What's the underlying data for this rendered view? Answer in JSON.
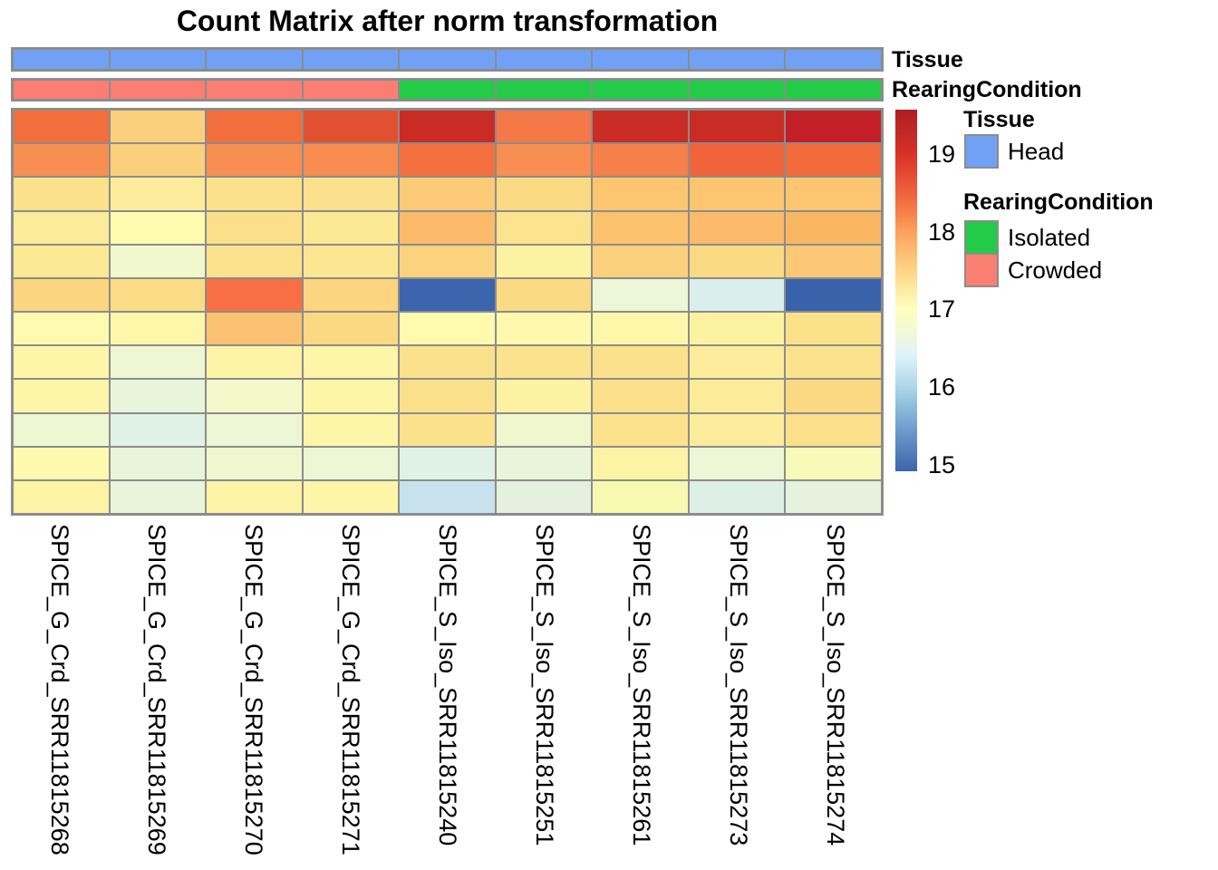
{
  "title": "Count Matrix after norm transformation",
  "annotations": {
    "tissue": {
      "label": "Tissue",
      "per_column": [
        "Head",
        "Head",
        "Head",
        "Head",
        "Head",
        "Head",
        "Head",
        "Head",
        "Head"
      ],
      "colors": {
        "Head": "#70A1F5"
      }
    },
    "rearing": {
      "label": "RearingCondition",
      "per_column": [
        "Crowded",
        "Crowded",
        "Crowded",
        "Crowded",
        "Isolated",
        "Isolated",
        "Isolated",
        "Isolated",
        "Isolated"
      ],
      "colors": {
        "Isolated": "#22CC47",
        "Crowded": "#FA7F72"
      }
    }
  },
  "legend": {
    "tissue_header": "Tissue",
    "tissue_items": [
      {
        "label": "Head",
        "color": "#70A1F5"
      }
    ],
    "rearing_header": "RearingCondition",
    "rearing_items": [
      {
        "label": "Isolated",
        "color": "#22CC47"
      },
      {
        "label": "Crowded",
        "color": "#FA7F72"
      }
    ]
  },
  "chart_data": {
    "type": "heatmap",
    "title": "Count Matrix after norm transformation",
    "columns": [
      "SPICE_G_Crd_SRR11815268",
      "SPICE_G_Crd_SRR11815269",
      "SPICE_G_Crd_SRR11815270",
      "SPICE_G_Crd_SRR11815271",
      "SPICE_S_Iso_SRR11815240",
      "SPICE_S_Iso_SRR11815251",
      "SPICE_S_Iso_SRR11815261",
      "SPICE_S_Iso_SRR11815273",
      "SPICE_S_Iso_SRR11815274"
    ],
    "n_rows": 12,
    "row_labels_shown": false,
    "column_annotations": {
      "Tissue": [
        "Head",
        "Head",
        "Head",
        "Head",
        "Head",
        "Head",
        "Head",
        "Head",
        "Head"
      ],
      "RearingCondition": [
        "Crowded",
        "Crowded",
        "Crowded",
        "Crowded",
        "Isolated",
        "Isolated",
        "Isolated",
        "Isolated",
        "Isolated"
      ]
    },
    "values": [
      [
        19.0,
        18.25,
        19.0,
        19.2,
        19.4,
        18.9,
        19.4,
        19.4,
        19.5
      ],
      [
        18.8,
        18.25,
        18.8,
        18.8,
        19.0,
        18.8,
        18.85,
        19.1,
        19.0
      ],
      [
        18.0,
        17.85,
        18.0,
        18.0,
        18.3,
        18.15,
        18.35,
        18.35,
        18.35
      ],
      [
        17.9,
        17.6,
        18.05,
        17.9,
        18.45,
        18.0,
        18.35,
        18.45,
        18.5
      ],
      [
        17.9,
        17.25,
        18.0,
        17.95,
        18.2,
        17.8,
        18.2,
        18.15,
        18.3
      ],
      [
        18.2,
        18.1,
        18.95,
        18.2,
        15.1,
        18.15,
        17.1,
        16.7,
        15.1
      ],
      [
        17.5,
        17.65,
        18.35,
        18.1,
        17.6,
        17.6,
        17.65,
        17.8,
        18.0
      ],
      [
        17.7,
        17.2,
        17.8,
        17.7,
        18.0,
        18.0,
        18.0,
        17.85,
        18.0
      ],
      [
        17.7,
        17.05,
        17.3,
        17.7,
        18.0,
        17.8,
        18.05,
        17.9,
        18.1
      ],
      [
        17.2,
        16.9,
        17.15,
        17.7,
        18.0,
        17.2,
        18.0,
        17.85,
        18.05
      ],
      [
        17.6,
        17.05,
        17.2,
        17.15,
        16.9,
        17.05,
        17.8,
        17.15,
        17.4
      ],
      [
        17.8,
        17.05,
        17.8,
        17.7,
        16.3,
        16.95,
        17.35,
        16.85,
        17.0
      ]
    ],
    "cell_colors": [
      [
        "#F26E3D",
        "#FBD07D",
        "#F26E3D",
        "#E25032",
        "#C92B25",
        "#F57849",
        "#C92B25",
        "#C92B25",
        "#C22026"
      ],
      [
        "#F88E51",
        "#FBD07D",
        "#F88E51",
        "#F88B4F",
        "#F4713F",
        "#F88E51",
        "#F67F4A",
        "#F1633A",
        "#F26B3D"
      ],
      [
        "#FBE18B",
        "#FCEC9B",
        "#FBE18B",
        "#FBE18D",
        "#FCCB77",
        "#FBDA84",
        "#FCC671",
        "#FCC671",
        "#FCC671"
      ],
      [
        "#FCEB99",
        "#FEFAAE",
        "#FBDF8A",
        "#FCE994",
        "#FBBB6A",
        "#FCE38E",
        "#FCC26E",
        "#FBBB6A",
        "#FAB763"
      ],
      [
        "#FCE994",
        "#F1F8CD",
        "#FBE28D",
        "#FCE692",
        "#FBD37F",
        "#FDF2A2",
        "#FBD17D",
        "#FBDA84",
        "#FCC876"
      ],
      [
        "#FBD57F",
        "#FBDC86",
        "#F86F45",
        "#FBD57F",
        "#3C64AC",
        "#FBDA84",
        "#EBF7D6",
        "#DBEEEE",
        "#3A62AA"
      ],
      [
        "#FEFBB1",
        "#FDF7AA",
        "#FAC272",
        "#FBD983",
        "#FEFAAE",
        "#FEF9AC",
        "#FDF8A9",
        "#FDF2A0",
        "#FBE18A"
      ],
      [
        "#FDF6A8",
        "#EFF7D2",
        "#FDF3A4",
        "#FDF5A7",
        "#FBE18C",
        "#FBE28D",
        "#FBE18C",
        "#FCEC9B",
        "#FBE28D"
      ],
      [
        "#FDF6A8",
        "#E9F5DA",
        "#F4F9C9",
        "#FDF6A8",
        "#FBE08B",
        "#FDF2A2",
        "#FBDF8A",
        "#FCEB99",
        "#FBD983"
      ],
      [
        "#EFF7D2",
        "#E0F1E6",
        "#EDF6D5",
        "#FDF6A8",
        "#FBE18C",
        "#F0F7CF",
        "#FBE28D",
        "#FCEC9B",
        "#FBDF8A"
      ],
      [
        "#FDFAAE",
        "#E9F5DA",
        "#F0F7CF",
        "#EDF6D5",
        "#E0F1E6",
        "#E9F5DA",
        "#FCF3A4",
        "#EDF6D5",
        "#F8FAB8"
      ],
      [
        "#FCF3A4",
        "#E9F5DA",
        "#FCF3A6",
        "#FDF5A7",
        "#C8E2ED",
        "#E3F1DE",
        "#F7F9B0",
        "#DEEFE7",
        "#E5F3DE"
      ]
    ],
    "colorbar": {
      "ticks": [
        19,
        18,
        17,
        16,
        15
      ],
      "domain": [
        14.93,
        19.57
      ],
      "palette": "RdYlBu reversed",
      "gradient_stops": [
        [
          0,
          "#AD1F24"
        ],
        [
          12,
          "#D73027"
        ],
        [
          24,
          "#F16640"
        ],
        [
          34,
          "#FBA35C"
        ],
        [
          44,
          "#FDD384"
        ],
        [
          55,
          "#FEFEBE"
        ],
        [
          61,
          "#F3FAD3"
        ],
        [
          68,
          "#DFF2F8"
        ],
        [
          77,
          "#ABD6E8"
        ],
        [
          88,
          "#6F9FCD"
        ],
        [
          100,
          "#3C64AC"
        ]
      ]
    },
    "grid": true,
    "grid_color": "#8C8C8C",
    "legend_position": "right"
  }
}
